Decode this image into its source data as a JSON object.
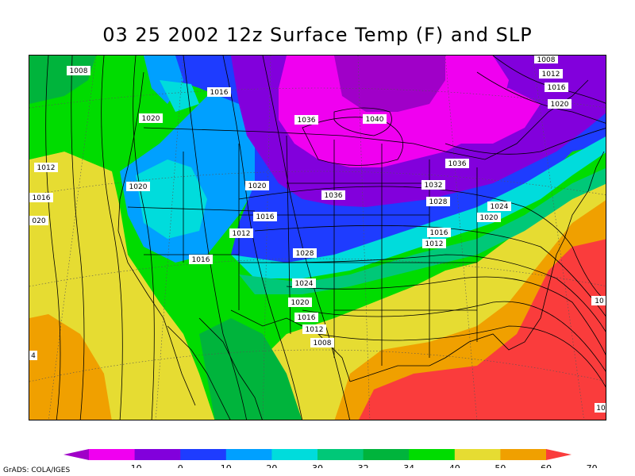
{
  "title": "03 25 2002 12z Surface Temp (F) and SLP",
  "credit": "GrADS: COLA/IGES",
  "colorbar": {
    "bins": [
      {
        "color": "#a000c8"
      },
      {
        "color": "#f000f0"
      },
      {
        "color": "#8200dc"
      },
      {
        "color": "#1e3cff"
      },
      {
        "color": "#00a0ff"
      },
      {
        "color": "#00dcdc"
      },
      {
        "color": "#00c878"
      },
      {
        "color": "#00b43c"
      },
      {
        "color": "#00dc00"
      },
      {
        "color": "#e6dc32"
      },
      {
        "color": "#f0a000"
      },
      {
        "color": "#fa3c3c"
      }
    ],
    "tick_labels": [
      "-10",
      "0",
      "10",
      "20",
      "30",
      "32",
      "34",
      "40",
      "50",
      "60",
      "70"
    ]
  },
  "isobar_labels": [
    {
      "text": "1008"
    },
    {
      "text": "1016"
    },
    {
      "text": "1020"
    },
    {
      "text": "1012"
    },
    {
      "text": "1016"
    },
    {
      "text": "1020"
    },
    {
      "text": "020"
    },
    {
      "text": "1036"
    },
    {
      "text": "1040"
    },
    {
      "text": "1036"
    },
    {
      "text": "1020"
    },
    {
      "text": "1036"
    },
    {
      "text": "1032"
    },
    {
      "text": "1028"
    },
    {
      "text": "1016"
    },
    {
      "text": "1012"
    },
    {
      "text": "1016"
    },
    {
      "text": "1028"
    },
    {
      "text": "1024"
    },
    {
      "text": "1020"
    },
    {
      "text": "1016"
    },
    {
      "text": "1012"
    },
    {
      "text": "1008"
    },
    {
      "text": "1016"
    },
    {
      "text": "1012"
    },
    {
      "text": "1024"
    },
    {
      "text": "1020"
    },
    {
      "text": "1008"
    },
    {
      "text": "1012"
    },
    {
      "text": "1016"
    },
    {
      "text": "1020"
    },
    {
      "text": "10"
    },
    {
      "text": "10"
    },
    {
      "text": "4"
    }
  ]
}
